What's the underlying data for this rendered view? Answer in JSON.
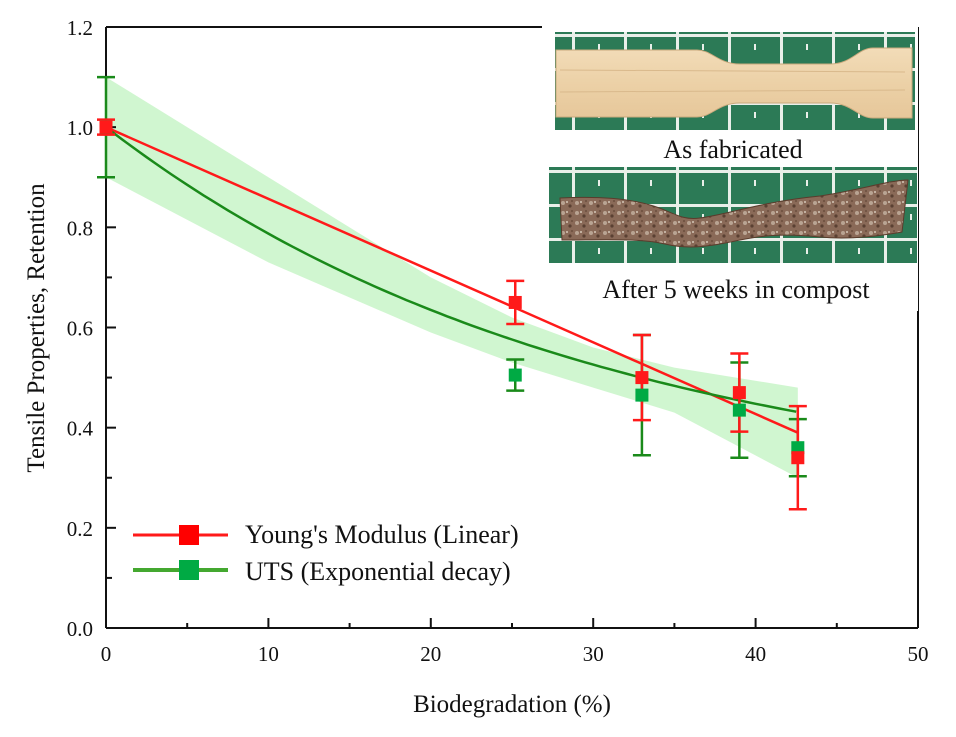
{
  "chart_data": {
    "type": "scatter",
    "title": "",
    "xlabel": "Biodegradation (%)",
    "ylabel": "Tensile Properties, Retention",
    "xlim": [
      0,
      50
    ],
    "ylim": [
      0,
      1.2
    ],
    "x_ticks": [
      0,
      10,
      20,
      30,
      40,
      50
    ],
    "x_tick_labels": [
      "0",
      "10",
      "20",
      "30",
      "40",
      "50"
    ],
    "x_minor_ticks": [
      5,
      15,
      25,
      35,
      45
    ],
    "y_ticks": [
      0,
      0.2,
      0.4,
      0.6,
      0.8,
      1.0,
      1.2
    ],
    "y_tick_labels": [
      "0.0",
      "0.2",
      "0.4",
      "0.6",
      "0.8",
      "1.0",
      "1.2"
    ],
    "y_minor_ticks": [
      0.1,
      0.3,
      0.5,
      0.7,
      0.9,
      1.1
    ],
    "grid": false,
    "legend_position": "bottom-left",
    "series": [
      {
        "name": "Young's Modulus (Linear)",
        "color": "#ff1a1a",
        "marker": "square",
        "fit": "linear",
        "fit_line": {
          "x": [
            0,
            42.6
          ],
          "y": [
            1.0,
            0.39
          ]
        },
        "x": [
          0,
          25.2,
          33.0,
          39.0,
          42.6
        ],
        "y": [
          1.0,
          0.65,
          0.5,
          0.47,
          0.34
        ],
        "yerr": [
          0.015,
          0.043,
          0.085,
          0.078,
          0.103
        ]
      },
      {
        "name": "UTS (Exponential decay)",
        "color": "#1a8a1a",
        "marker_color": "#00aa44",
        "marker": "square",
        "fit": "exponential decay",
        "fit_params": {
          "y0": 0.25,
          "A": 0.75,
          "t": 30.0
        },
        "confidence_band_color": "#c8f5c8",
        "confidence_band": {
          "x": [
            0,
            10,
            20,
            25,
            30,
            35,
            42.6
          ],
          "lower": [
            0.9,
            0.73,
            0.59,
            0.53,
            0.48,
            0.43,
            0.3
          ],
          "upper": [
            1.1,
            0.9,
            0.7,
            0.62,
            0.56,
            0.52,
            0.48
          ]
        },
        "x": [
          0,
          25.2,
          33.0,
          39.0,
          42.6
        ],
        "y": [
          1.0,
          0.505,
          0.465,
          0.435,
          0.36
        ],
        "yerr": [
          0.1,
          0.031,
          0.12,
          0.095,
          0.057
        ]
      }
    ],
    "inset": {
      "captions": [
        "As fabricated",
        "After 5 weeks in compost"
      ],
      "images": [
        "dogbone-specimen-as-fabricated-photo",
        "dogbone-specimen-after-compost-photo"
      ]
    }
  }
}
